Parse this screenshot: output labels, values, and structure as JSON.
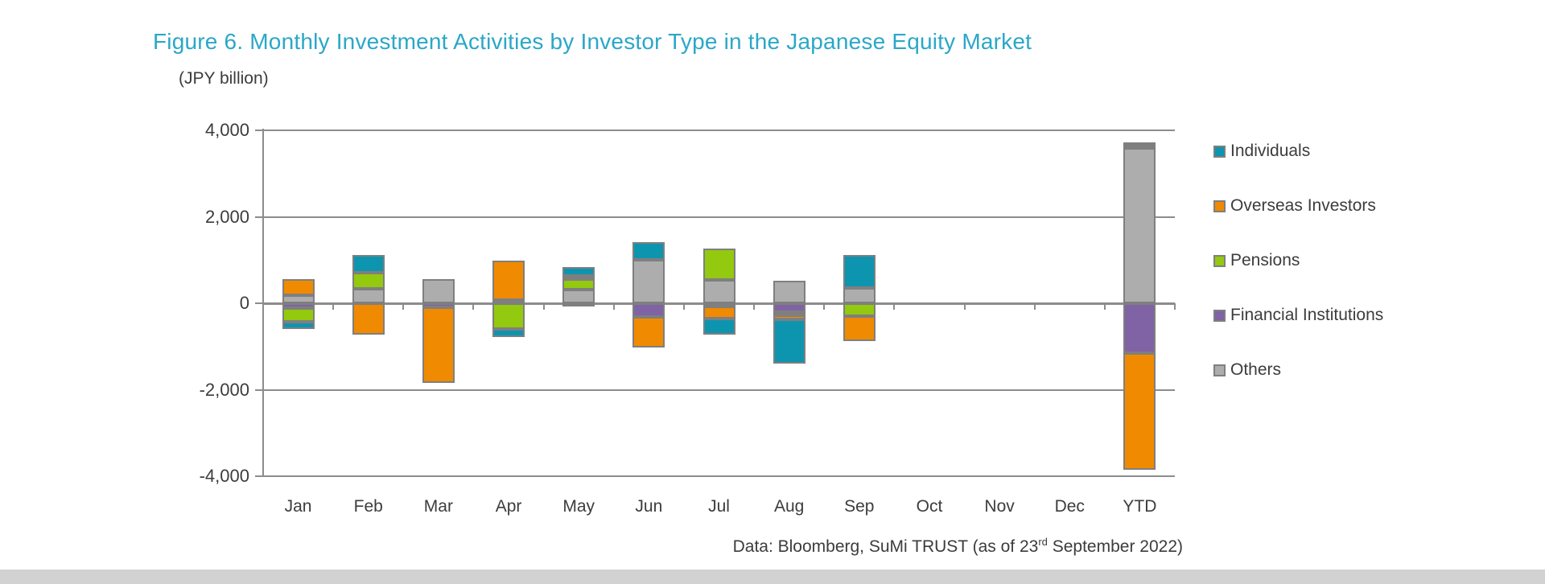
{
  "title": "Figure 6. Monthly Investment Activities by Investor Type in the Japanese Equity Market",
  "unit_label": "(JPY billion)",
  "source": {
    "prefix": "Data: Bloomberg, SuMi TRUST (as of 23",
    "superscript": "rd",
    "suffix": " September 2022)"
  },
  "colors": {
    "title": "#2BA7C7",
    "text": "#3C3C3C",
    "grid": "#8C8C8C",
    "bar_border": "#7F7F7F",
    "individuals": "#0D95B0",
    "overseas_investors": "#F08A00",
    "pensions": "#93C90E",
    "financial_institutions": "#7F63A5",
    "others": "#ADADAD"
  },
  "chart_data": {
    "type": "bar",
    "stacked": true,
    "title": "Figure 6. Monthly Investment Activities by Investor Type in the Japanese Equity Market",
    "ylabel": "(JPY billion)",
    "ylim": [
      -4000,
      4000
    ],
    "grid": true,
    "legend_position": "right",
    "categories": [
      "Jan",
      "Feb",
      "Mar",
      "Apr",
      "May",
      "Jun",
      "Jul",
      "Aug",
      "Sep",
      "Oct",
      "Nov",
      "Dec",
      "YTD"
    ],
    "yticks": [
      {
        "label": "4,000",
        "value": 4000
      },
      {
        "label": "2,000",
        "value": 2000
      },
      {
        "label": "0",
        "value": 0
      },
      {
        "label": "-2,000",
        "value": -2000
      },
      {
        "label": "-4,000",
        "value": -4000
      }
    ],
    "stack_order_from_axis": [
      "Others",
      "Financial Institutions",
      "Pensions",
      "Overseas Investors",
      "Individuals"
    ],
    "series": [
      {
        "name": "Individuals",
        "color_key": "individuals",
        "values": [
          -170,
          420,
          0,
          -180,
          200,
          410,
          -380,
          -1030,
          760,
          0,
          0,
          0,
          60
        ]
      },
      {
        "name": "Overseas Investors",
        "color_key": "overseas_investors",
        "values": [
          370,
          -720,
          -1750,
          900,
          70,
          -700,
          -280,
          -90,
          -580,
          0,
          0,
          0,
          -2700
        ]
      },
      {
        "name": "Pensions",
        "color_key": "pensions",
        "values": [
          -320,
          370,
          0,
          -600,
          240,
          0,
          730,
          -80,
          -290,
          0,
          0,
          0,
          70
        ]
      },
      {
        "name": "Financial Institutions",
        "color_key": "financial_institutions",
        "values": [
          -110,
          0,
          -100,
          0,
          -80,
          -320,
          -70,
          -200,
          0,
          0,
          0,
          0,
          -1150
        ]
      },
      {
        "name": "Others",
        "color_key": "others",
        "values": [
          190,
          330,
          550,
          80,
          320,
          1000,
          540,
          520,
          350,
          0,
          0,
          0,
          3600
        ]
      }
    ]
  }
}
